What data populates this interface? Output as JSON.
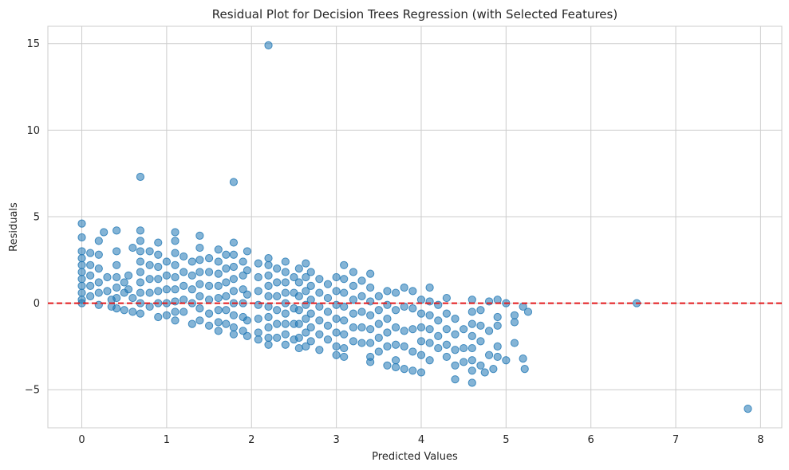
{
  "chart_data": {
    "type": "scatter",
    "title": "Residual Plot for Decision Trees Regression (with Selected Features)",
    "xlabel": "Predicted Values",
    "ylabel": "Residuals",
    "xlim": [
      -0.4,
      8.25
    ],
    "ylim": [
      -7.2,
      16
    ],
    "xticks": [
      0,
      1,
      2,
      3,
      4,
      5,
      6,
      7,
      8
    ],
    "xtick_labels": [
      "0",
      "1",
      "2",
      "3",
      "4",
      "5",
      "6",
      "7",
      "8"
    ],
    "yticks": [
      -5,
      0,
      5,
      10,
      15
    ],
    "ytick_labels": [
      "−5",
      "0",
      "5",
      "10",
      "15"
    ],
    "grid": true,
    "reference_line": {
      "y": 0,
      "color": "#e31a1c",
      "style": "dashed"
    },
    "point_color": "#1f77b4",
    "points": [
      [
        0.0,
        4.6
      ],
      [
        0.0,
        3.8
      ],
      [
        0.0,
        3.0
      ],
      [
        0.0,
        2.6
      ],
      [
        0.0,
        2.2
      ],
      [
        0.0,
        1.8
      ],
      [
        0.0,
        1.4
      ],
      [
        0.0,
        1.0
      ],
      [
        0.0,
        0.6
      ],
      [
        0.0,
        0.2
      ],
      [
        0.0,
        0.0
      ],
      [
        0.1,
        2.9
      ],
      [
        0.1,
        2.2
      ],
      [
        0.1,
        1.6
      ],
      [
        0.1,
        1.0
      ],
      [
        0.1,
        0.4
      ],
      [
        0.2,
        3.6
      ],
      [
        0.2,
        2.8
      ],
      [
        0.2,
        2.0
      ],
      [
        0.2,
        1.2
      ],
      [
        0.2,
        0.6
      ],
      [
        0.2,
        -0.1
      ],
      [
        0.26,
        4.1
      ],
      [
        0.3,
        1.5
      ],
      [
        0.3,
        0.7
      ],
      [
        0.35,
        0.2
      ],
      [
        0.35,
        -0.2
      ],
      [
        0.41,
        4.2
      ],
      [
        0.41,
        3.0
      ],
      [
        0.41,
        2.2
      ],
      [
        0.41,
        1.5
      ],
      [
        0.41,
        0.9
      ],
      [
        0.41,
        0.3
      ],
      [
        0.41,
        -0.3
      ],
      [
        0.5,
        1.2
      ],
      [
        0.5,
        0.6
      ],
      [
        0.5,
        -0.4
      ],
      [
        0.55,
        1.6
      ],
      [
        0.55,
        0.8
      ],
      [
        0.6,
        3.2
      ],
      [
        0.6,
        0.3
      ],
      [
        0.6,
        -0.5
      ],
      [
        0.69,
        7.3
      ],
      [
        0.69,
        4.2
      ],
      [
        0.69,
        3.6
      ],
      [
        0.69,
        3.0
      ],
      [
        0.69,
        2.4
      ],
      [
        0.69,
        1.8
      ],
      [
        0.69,
        1.2
      ],
      [
        0.69,
        0.6
      ],
      [
        0.69,
        0.0
      ],
      [
        0.69,
        -0.6
      ],
      [
        0.8,
        3.0
      ],
      [
        0.8,
        2.2
      ],
      [
        0.8,
        1.4
      ],
      [
        0.8,
        0.6
      ],
      [
        0.8,
        -0.2
      ],
      [
        0.9,
        3.5
      ],
      [
        0.9,
        2.8
      ],
      [
        0.9,
        2.1
      ],
      [
        0.9,
        1.4
      ],
      [
        0.9,
        0.7
      ],
      [
        0.9,
        0.0
      ],
      [
        0.9,
        -0.8
      ],
      [
        1.0,
        2.4
      ],
      [
        1.0,
        1.6
      ],
      [
        1.0,
        0.8
      ],
      [
        1.0,
        0.0
      ],
      [
        1.0,
        -0.7
      ],
      [
        1.1,
        4.1
      ],
      [
        1.1,
        3.6
      ],
      [
        1.1,
        2.9
      ],
      [
        1.1,
        2.2
      ],
      [
        1.1,
        1.5
      ],
      [
        1.1,
        0.8
      ],
      [
        1.1,
        0.1
      ],
      [
        1.1,
        -0.5
      ],
      [
        1.1,
        -1.0
      ],
      [
        1.2,
        2.7
      ],
      [
        1.2,
        1.8
      ],
      [
        1.2,
        1.0
      ],
      [
        1.2,
        0.2
      ],
      [
        1.2,
        -0.5
      ],
      [
        1.3,
        2.4
      ],
      [
        1.3,
        1.6
      ],
      [
        1.3,
        0.8
      ],
      [
        1.3,
        0.0
      ],
      [
        1.3,
        -1.2
      ],
      [
        1.39,
        3.9
      ],
      [
        1.39,
        3.2
      ],
      [
        1.39,
        2.5
      ],
      [
        1.39,
        1.8
      ],
      [
        1.39,
        1.1
      ],
      [
        1.39,
        0.4
      ],
      [
        1.39,
        -0.3
      ],
      [
        1.39,
        -1.0
      ],
      [
        1.5,
        2.6
      ],
      [
        1.5,
        1.8
      ],
      [
        1.5,
        1.0
      ],
      [
        1.5,
        0.2
      ],
      [
        1.5,
        -0.6
      ],
      [
        1.5,
        -1.3
      ],
      [
        1.61,
        3.1
      ],
      [
        1.61,
        2.4
      ],
      [
        1.61,
        1.7
      ],
      [
        1.61,
        1.0
      ],
      [
        1.61,
        0.3
      ],
      [
        1.61,
        -0.4
      ],
      [
        1.61,
        -1.1
      ],
      [
        1.61,
        -1.6
      ],
      [
        1.7,
        2.8
      ],
      [
        1.7,
        2.0
      ],
      [
        1.7,
        1.2
      ],
      [
        1.7,
        0.4
      ],
      [
        1.7,
        -0.4
      ],
      [
        1.7,
        -1.2
      ],
      [
        1.79,
        7.0
      ],
      [
        1.79,
        3.5
      ],
      [
        1.79,
        2.8
      ],
      [
        1.79,
        2.1
      ],
      [
        1.79,
        1.4
      ],
      [
        1.79,
        0.7
      ],
      [
        1.79,
        0.0
      ],
      [
        1.79,
        -0.7
      ],
      [
        1.79,
        -1.4
      ],
      [
        1.79,
        -1.8
      ],
      [
        1.9,
        2.4
      ],
      [
        1.9,
        1.6
      ],
      [
        1.9,
        0.8
      ],
      [
        1.9,
        0.0
      ],
      [
        1.9,
        -0.8
      ],
      [
        1.9,
        -1.6
      ],
      [
        1.95,
        3.0
      ],
      [
        1.95,
        1.9
      ],
      [
        1.95,
        0.5
      ],
      [
        1.95,
        -1.0
      ],
      [
        1.95,
        -1.9
      ],
      [
        2.08,
        2.3
      ],
      [
        2.08,
        1.5
      ],
      [
        2.08,
        0.7
      ],
      [
        2.08,
        -0.1
      ],
      [
        2.08,
        -0.9
      ],
      [
        2.08,
        -1.7
      ],
      [
        2.08,
        -2.1
      ],
      [
        2.2,
        14.9
      ],
      [
        2.2,
        2.6
      ],
      [
        2.2,
        2.2
      ],
      [
        2.2,
        1.6
      ],
      [
        2.2,
        1.0
      ],
      [
        2.2,
        0.4
      ],
      [
        2.2,
        -0.2
      ],
      [
        2.2,
        -0.8
      ],
      [
        2.2,
        -1.4
      ],
      [
        2.2,
        -2.0
      ],
      [
        2.2,
        -2.4
      ],
      [
        2.3,
        2.0
      ],
      [
        2.3,
        1.2
      ],
      [
        2.3,
        0.4
      ],
      [
        2.3,
        -0.4
      ],
      [
        2.3,
        -1.2
      ],
      [
        2.3,
        -2.0
      ],
      [
        2.4,
        2.4
      ],
      [
        2.4,
        1.8
      ],
      [
        2.4,
        1.2
      ],
      [
        2.4,
        0.6
      ],
      [
        2.4,
        0.0
      ],
      [
        2.4,
        -0.6
      ],
      [
        2.4,
        -1.2
      ],
      [
        2.4,
        -1.8
      ],
      [
        2.4,
        -2.4
      ],
      [
        2.5,
        1.5
      ],
      [
        2.5,
        0.6
      ],
      [
        2.5,
        -0.3
      ],
      [
        2.5,
        -1.2
      ],
      [
        2.5,
        -2.1
      ],
      [
        2.56,
        2.0
      ],
      [
        2.56,
        1.2
      ],
      [
        2.56,
        0.4
      ],
      [
        2.56,
        -0.4
      ],
      [
        2.56,
        -1.2
      ],
      [
        2.56,
        -2.0
      ],
      [
        2.56,
        -2.6
      ],
      [
        2.64,
        2.3
      ],
      [
        2.64,
        1.5
      ],
      [
        2.64,
        0.7
      ],
      [
        2.64,
        -0.1
      ],
      [
        2.64,
        -0.9
      ],
      [
        2.64,
        -1.7
      ],
      [
        2.64,
        -2.5
      ],
      [
        2.7,
        1.8
      ],
      [
        2.7,
        1.0
      ],
      [
        2.7,
        0.2
      ],
      [
        2.7,
        -0.6
      ],
      [
        2.7,
        -1.4
      ],
      [
        2.7,
        -2.2
      ],
      [
        2.8,
        1.4
      ],
      [
        2.8,
        0.6
      ],
      [
        2.8,
        -0.2
      ],
      [
        2.8,
        -1.0
      ],
      [
        2.8,
        -1.8
      ],
      [
        2.8,
        -2.7
      ],
      [
        2.9,
        1.1
      ],
      [
        2.9,
        0.3
      ],
      [
        2.9,
        -0.5
      ],
      [
        2.9,
        -1.3
      ],
      [
        2.9,
        -2.1
      ],
      [
        3.0,
        1.5
      ],
      [
        3.0,
        0.7
      ],
      [
        3.0,
        -0.1
      ],
      [
        3.0,
        -0.9
      ],
      [
        3.0,
        -1.7
      ],
      [
        3.0,
        -2.5
      ],
      [
        3.0,
        -3.0
      ],
      [
        3.09,
        2.2
      ],
      [
        3.09,
        1.4
      ],
      [
        3.09,
        0.6
      ],
      [
        3.09,
        -0.2
      ],
      [
        3.09,
        -1.0
      ],
      [
        3.09,
        -1.8
      ],
      [
        3.09,
        -2.6
      ],
      [
        3.09,
        -3.1
      ],
      [
        3.2,
        1.8
      ],
      [
        3.2,
        1.0
      ],
      [
        3.2,
        0.2
      ],
      [
        3.2,
        -0.6
      ],
      [
        3.2,
        -1.4
      ],
      [
        3.2,
        -2.2
      ],
      [
        3.3,
        1.3
      ],
      [
        3.3,
        0.4
      ],
      [
        3.3,
        -0.5
      ],
      [
        3.3,
        -1.4
      ],
      [
        3.3,
        -2.3
      ],
      [
        3.4,
        1.7
      ],
      [
        3.4,
        0.9
      ],
      [
        3.4,
        0.1
      ],
      [
        3.4,
        -0.7
      ],
      [
        3.4,
        -1.5
      ],
      [
        3.4,
        -2.3
      ],
      [
        3.4,
        -3.1
      ],
      [
        3.4,
        -3.4
      ],
      [
        3.5,
        0.4
      ],
      [
        3.5,
        -0.4
      ],
      [
        3.5,
        -1.2
      ],
      [
        3.5,
        -2.0
      ],
      [
        3.5,
        -2.8
      ],
      [
        3.6,
        0.7
      ],
      [
        3.6,
        -0.1
      ],
      [
        3.6,
        -0.9
      ],
      [
        3.6,
        -1.7
      ],
      [
        3.6,
        -2.5
      ],
      [
        3.6,
        -3.6
      ],
      [
        3.7,
        0.6
      ],
      [
        3.7,
        -0.4
      ],
      [
        3.7,
        -1.4
      ],
      [
        3.7,
        -2.4
      ],
      [
        3.7,
        -3.3
      ],
      [
        3.7,
        -3.7
      ],
      [
        3.8,
        0.9
      ],
      [
        3.8,
        -0.2
      ],
      [
        3.8,
        -1.6
      ],
      [
        3.8,
        -2.5
      ],
      [
        3.8,
        -3.8
      ],
      [
        3.9,
        0.7
      ],
      [
        3.9,
        -0.3
      ],
      [
        3.9,
        -1.5
      ],
      [
        3.9,
        -2.8
      ],
      [
        3.9,
        -3.9
      ],
      [
        4.0,
        0.2
      ],
      [
        4.0,
        -0.6
      ],
      [
        4.0,
        -1.4
      ],
      [
        4.0,
        -2.2
      ],
      [
        4.0,
        -3.0
      ],
      [
        4.0,
        -4.0
      ],
      [
        4.1,
        0.9
      ],
      [
        4.1,
        0.1
      ],
      [
        4.1,
        -0.7
      ],
      [
        4.1,
        -1.5
      ],
      [
        4.1,
        -2.3
      ],
      [
        4.1,
        -3.3
      ],
      [
        4.2,
        -0.1
      ],
      [
        4.2,
        -1.0
      ],
      [
        4.2,
        -1.9
      ],
      [
        4.2,
        -2.6
      ],
      [
        4.3,
        0.3
      ],
      [
        4.3,
        -0.6
      ],
      [
        4.3,
        -1.5
      ],
      [
        4.3,
        -2.4
      ],
      [
        4.3,
        -3.1
      ],
      [
        4.4,
        -0.9
      ],
      [
        4.4,
        -1.8
      ],
      [
        4.4,
        -2.7
      ],
      [
        4.4,
        -3.6
      ],
      [
        4.4,
        -4.4
      ],
      [
        4.5,
        -1.5
      ],
      [
        4.5,
        -2.6
      ],
      [
        4.5,
        -3.4
      ],
      [
        4.6,
        0.2
      ],
      [
        4.6,
        -0.5
      ],
      [
        4.6,
        -1.2
      ],
      [
        4.6,
        -1.9
      ],
      [
        4.6,
        -2.6
      ],
      [
        4.6,
        -3.3
      ],
      [
        4.6,
        -3.9
      ],
      [
        4.6,
        -4.6
      ],
      [
        4.7,
        -0.4
      ],
      [
        4.7,
        -1.3
      ],
      [
        4.7,
        -2.2
      ],
      [
        4.7,
        -3.6
      ],
      [
        4.75,
        -4.0
      ],
      [
        4.8,
        0.1
      ],
      [
        4.8,
        -1.6
      ],
      [
        4.8,
        -3.0
      ],
      [
        4.85,
        -3.8
      ],
      [
        4.9,
        0.2
      ],
      [
        4.9,
        -0.8
      ],
      [
        4.9,
        -1.3
      ],
      [
        4.9,
        -2.5
      ],
      [
        4.9,
        -3.1
      ],
      [
        5.0,
        0.0
      ],
      [
        5.0,
        -3.3
      ],
      [
        5.1,
        -0.7
      ],
      [
        5.1,
        -1.1
      ],
      [
        5.1,
        -2.3
      ],
      [
        5.2,
        -0.2
      ],
      [
        5.2,
        -3.2
      ],
      [
        5.22,
        -3.8
      ],
      [
        5.26,
        -0.5
      ],
      [
        6.54,
        0.0
      ],
      [
        7.85,
        -6.1
      ]
    ]
  }
}
